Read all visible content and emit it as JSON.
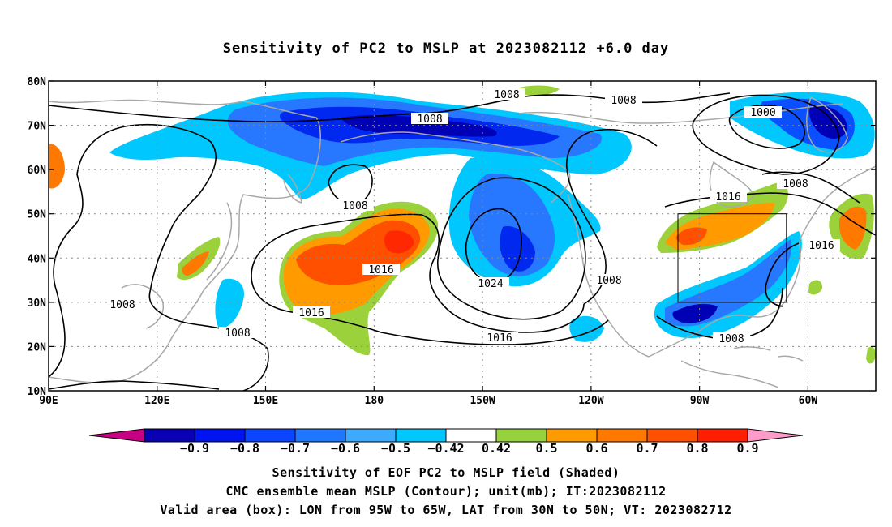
{
  "title": "Sensitivity of PC2 to MSLP at 2023082112 +6.0 day",
  "map": {
    "lat_labels": [
      "80N",
      "70N",
      "60N",
      "50N",
      "40N",
      "30N",
      "20N",
      "10N"
    ],
    "lon_labels": [
      "90E",
      "120E",
      "150E",
      "180",
      "150W",
      "120W",
      "90W",
      "60W"
    ],
    "contour_labels": [
      "1008",
      "1008",
      "1008",
      "1000",
      "1008",
      "1008",
      "1016",
      "1016",
      "1016",
      "1024",
      "1008",
      "1008",
      "1016",
      "1008",
      "1016",
      "1008"
    ],
    "valid_box": {
      "lon_min": "95W",
      "lon_max": "65W",
      "lat_min": "30N",
      "lat_max": "50N"
    },
    "colors": {
      "neg_09": "#0000b4",
      "neg_08": "#0028ef",
      "neg_07": "#0a50ff",
      "neg_06": "#2878ff",
      "neg_05": "#46b4ff",
      "neg_042": "#00c8ff",
      "pos_042": "#9bd23c",
      "pos_05": "#ff9b00",
      "pos_06": "#ff7800",
      "pos_07": "#ff5000",
      "pos_08": "#ff2800",
      "pos_09": "#ff00ff"
    }
  },
  "colorbar": {
    "labels": [
      "−0.9",
      "−0.8",
      "−0.7",
      "−0.6",
      "−0.5",
      "−0.42",
      "0.42",
      "0.5",
      "0.6",
      "0.7",
      "0.8",
      "0.9"
    ],
    "colors": [
      "#0a00b4",
      "#0014f0",
      "#0a46ff",
      "#1e78ff",
      "#3caaff",
      "#00c8ff",
      "#ffffff",
      "#96d23c",
      "#ff9b00",
      "#ff7800",
      "#ff5000",
      "#ff1e00"
    ],
    "low_end_color": "#c80082",
    "high_end_color": "#ff9bc8"
  },
  "footer": {
    "line1": "Sensitivity of EOF PC2 to MSLP field (Shaded)",
    "line2": "CMC ensemble mean MSLP (Contour); unit(mb); IT:2023082112",
    "line3": "Valid area (box): LON from 95W to 65W, LAT from 30N to 50N; VT: 2023082712"
  }
}
